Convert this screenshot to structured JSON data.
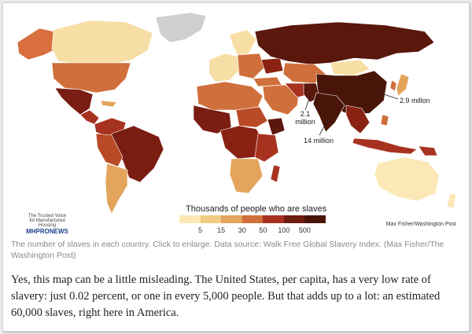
{
  "map": {
    "legend_title": "Thousands of people who are slaves",
    "legend_ticks": [
      "5",
      "15",
      "30",
      "50",
      "100",
      "500"
    ],
    "legend_colors": [
      "#fbe8b6",
      "#f2cc82",
      "#e3a45c",
      "#cf6f3b",
      "#a83220",
      "#6e1c12",
      "#4a1509"
    ],
    "annotations": {
      "china": "2.9 millon",
      "pakistan_line1": "2.1",
      "pakistan_line2": "million",
      "india": "14 million"
    },
    "credit": "Max Fisher/Washington Post",
    "logo_top": "The Trusted Voice for Manufactured Housing",
    "logo_main": "MHPRONEWS"
  },
  "caption": "The number of slaves in each country. Click to enlarge. Data source: Walk Free Global Slavery Index. (Max Fisher/The Washington Post)",
  "body": "Yes, this map can be a little misleading. The United States, per capita, has a very low rate of slavery: just 0.02 percent, or one in every 5,000 people. But that adds up to a lot: an estimated 60,000 slaves, right here in America."
}
